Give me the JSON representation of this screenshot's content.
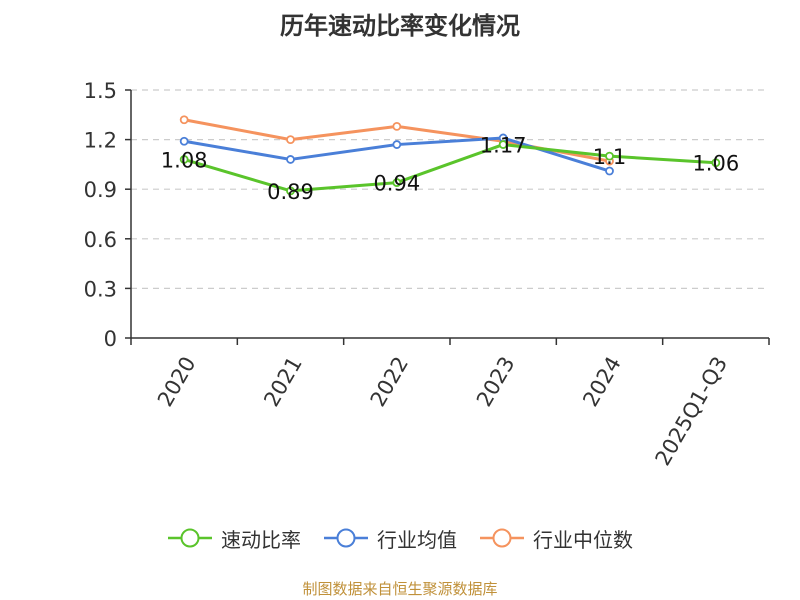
{
  "chart_data": {
    "type": "line",
    "title": "历年速动比率变化情况",
    "categories": [
      "2020",
      "2021",
      "2022",
      "2023",
      "2024",
      "2025Q1-Q3"
    ],
    "ylim": [
      0,
      1.5
    ],
    "yticks": [
      "0",
      "0.3",
      "0.6",
      "0.9",
      "1.2",
      "1.5"
    ],
    "ytick_values": [
      0,
      0.3,
      0.6,
      0.9,
      1.2,
      1.5
    ],
    "grid": true,
    "legend_position": "bottom",
    "series": [
      {
        "name": "速动比率",
        "color": "#5ac42b",
        "values": [
          1.08,
          0.89,
          0.94,
          1.17,
          1.1,
          1.06
        ],
        "labels": [
          "1.08",
          "0.89",
          "0.94",
          "1.17",
          "1.1",
          "1.06"
        ]
      },
      {
        "name": "行业均值",
        "color": "#4a7fd8",
        "values": [
          1.19,
          1.08,
          1.17,
          1.21,
          1.01,
          null
        ]
      },
      {
        "name": "行业中位数",
        "color": "#f5935e",
        "values": [
          1.32,
          1.2,
          1.28,
          1.19,
          1.07,
          null
        ]
      }
    ]
  },
  "footer": "制图数据来自恒生聚源数据库"
}
